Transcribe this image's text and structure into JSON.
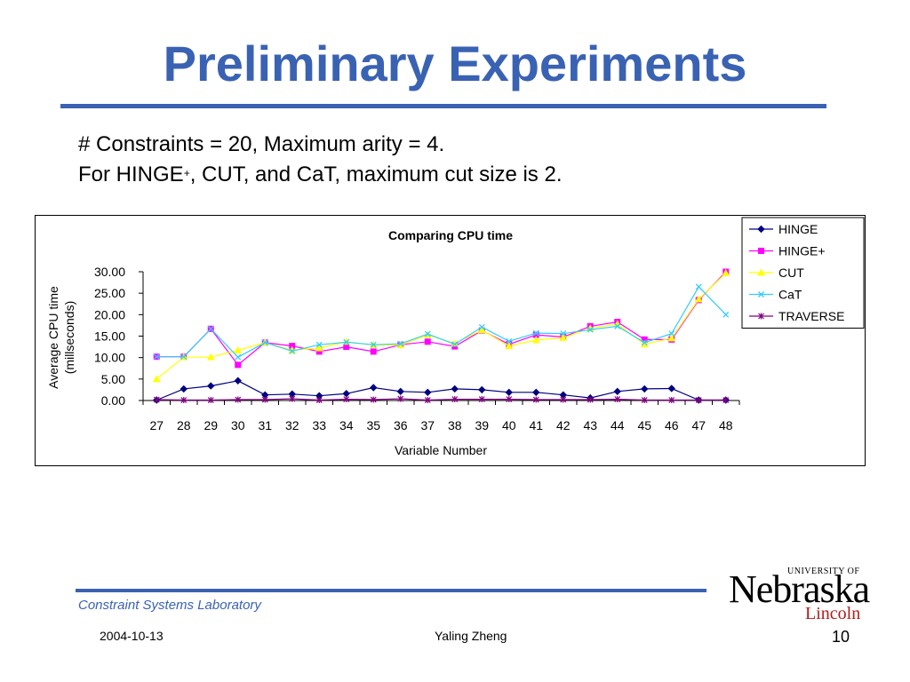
{
  "slide": {
    "title": "Preliminary Experiments",
    "line1": "# Constraints = 20, Maximum arity = 4.",
    "line2_pre": "For HINGE",
    "line2_sup": "+",
    "line2_post": ", CUT, and CaT, maximum cut size is 2."
  },
  "footer": {
    "lab": "Constraint Systems Laboratory",
    "date": "2004-10-13",
    "author": "Yaling Zheng",
    "page": "10"
  },
  "logo": {
    "university_of": "UNIVERSITY OF",
    "name": "Nebraska",
    "campus": "Lincoln"
  },
  "chart_data": {
    "type": "line",
    "title": "Comparing CPU time",
    "xlabel": "Variable Number",
    "ylabel_line1": "Average CPU time",
    "ylabel_line2": "(millseconds)",
    "ylim": [
      0,
      30
    ],
    "yticks": [
      "0.00",
      "5.00",
      "10.00",
      "15.00",
      "20.00",
      "25.00",
      "30.00"
    ],
    "categories": [
      "27",
      "28",
      "29",
      "30",
      "31",
      "32",
      "33",
      "34",
      "35",
      "36",
      "37",
      "38",
      "39",
      "40",
      "41",
      "42",
      "43",
      "44",
      "45",
      "46",
      "47",
      "48"
    ],
    "grid": false,
    "legend_position": "top-right",
    "series": [
      {
        "name": "HINGE",
        "color": "#000080",
        "marker": "diamond",
        "values": [
          0.1,
          2.7,
          3.4,
          4.6,
          1.3,
          1.5,
          1.1,
          1.6,
          3.0,
          2.1,
          1.9,
          2.7,
          2.5,
          1.9,
          1.9,
          1.3,
          0.6,
          2.1,
          2.7,
          2.8,
          0.1,
          0.1
        ]
      },
      {
        "name": "HINGE+",
        "color": "#ff00ff",
        "marker": "square",
        "values": [
          10.2,
          10.2,
          16.7,
          8.3,
          13.5,
          12.7,
          11.4,
          12.5,
          11.4,
          13.0,
          13.7,
          12.6,
          16.3,
          13.1,
          15.3,
          14.8,
          17.3,
          18.3,
          14.2,
          14.2,
          23.4,
          30.0
        ]
      },
      {
        "name": "CUT",
        "color": "#ffff00",
        "marker": "triangle",
        "values": [
          5.0,
          10.1,
          10.1,
          11.7,
          13.5,
          11.7,
          12.2,
          13.7,
          12.9,
          12.9,
          15.3,
          13.3,
          16.4,
          12.7,
          14.1,
          14.6,
          16.8,
          17.8,
          13.1,
          14.5,
          23.6,
          29.7
        ]
      },
      {
        "name": "CaT",
        "color": "#33ccff",
        "marker": "x",
        "values": [
          10.2,
          10.2,
          16.7,
          10.1,
          13.5,
          11.5,
          13.0,
          13.6,
          13.0,
          13.2,
          15.5,
          13.1,
          17.1,
          13.8,
          15.7,
          15.6,
          16.5,
          17.3,
          13.5,
          15.6,
          26.5,
          20.0
        ]
      },
      {
        "name": "TRAVERSE",
        "color": "#800080",
        "marker": "star",
        "values": [
          0.2,
          0.1,
          0.1,
          0.2,
          0.2,
          0.4,
          0.1,
          0.3,
          0.2,
          0.4,
          0.1,
          0.3,
          0.3,
          0.3,
          0.2,
          0.2,
          0.2,
          0.3,
          0.1,
          0.1,
          0.1,
          0.1
        ]
      }
    ]
  }
}
